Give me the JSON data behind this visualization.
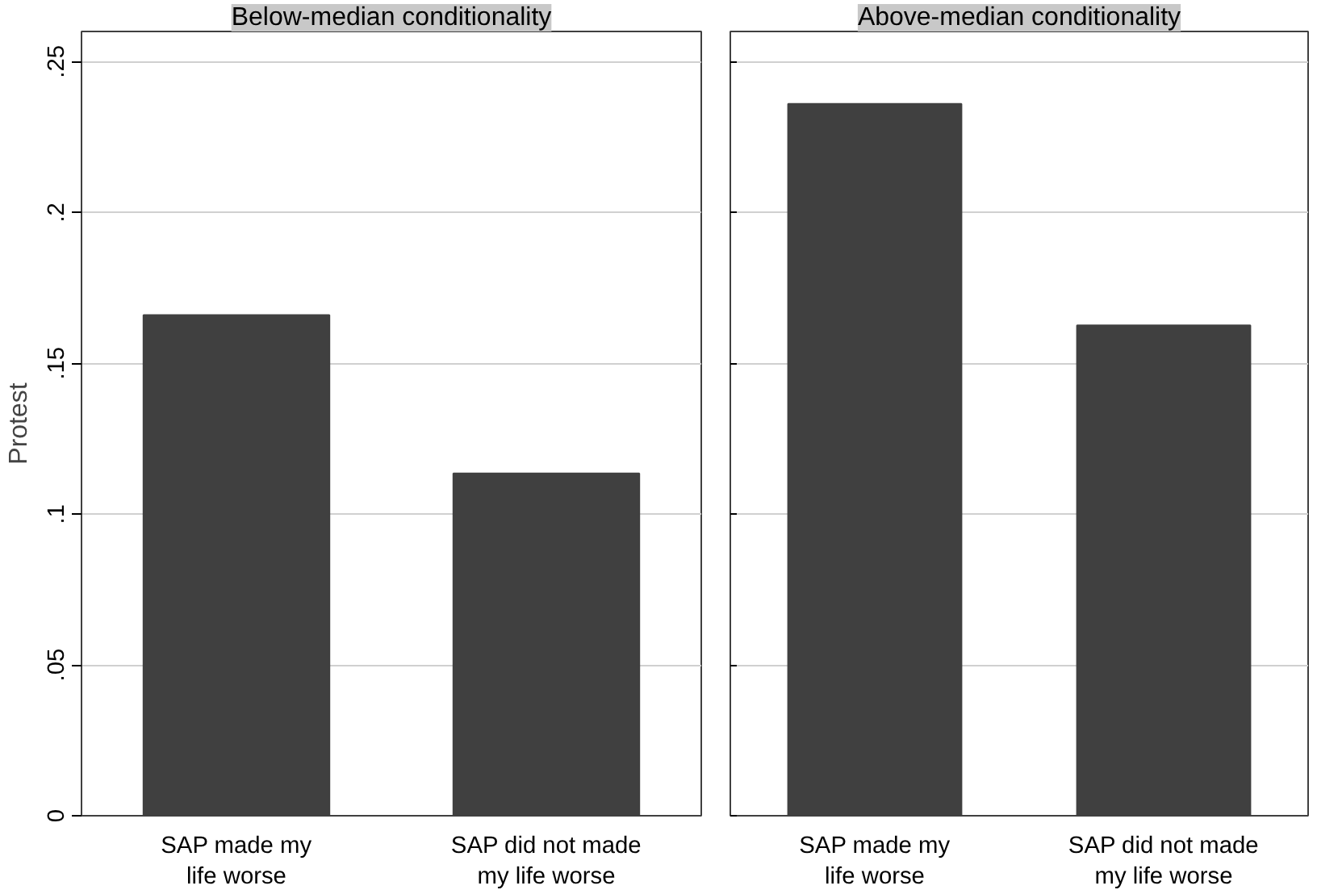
{
  "chart_data": [
    {
      "type": "bar",
      "title": "Below-median conditionality",
      "ylabel": "Protest",
      "categories": [
        "SAP made my\nlife worse",
        "SAP did not made\nmy life worse"
      ],
      "values": [
        0.166,
        0.1135
      ],
      "color": "#404040",
      "ylim": [
        0,
        0.26
      ],
      "yticks": [
        {
          "value": 0,
          "label": "0"
        },
        {
          "value": 0.05,
          "label": ".05"
        },
        {
          "value": 0.1,
          "label": ".1"
        },
        {
          "value": 0.15,
          "label": ".15"
        },
        {
          "value": 0.2,
          "label": ".2"
        },
        {
          "value": 0.25,
          "label": ".25"
        }
      ],
      "grid": "y"
    },
    {
      "type": "bar",
      "title": "Above-median conditionality",
      "categories": [
        "SAP made my\nlife worse",
        "SAP did not made\nmy life worse"
      ],
      "values": [
        0.236,
        0.1626
      ],
      "color": "#404040",
      "ylim": [
        0,
        0.26
      ],
      "yticks": [
        {
          "value": 0,
          "label": null
        },
        {
          "value": 0.05,
          "label": null
        },
        {
          "value": 0.1,
          "label": null
        },
        {
          "value": 0.15,
          "label": null
        },
        {
          "value": 0.2,
          "label": null
        },
        {
          "value": 0.25,
          "label": null
        }
      ],
      "grid": "y",
      "tick_labels": "x"
    }
  ]
}
